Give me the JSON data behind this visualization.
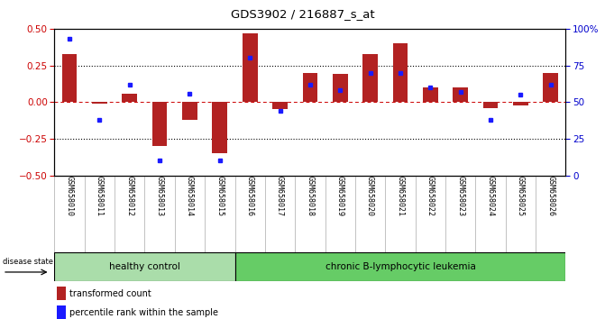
{
  "title": "GDS3902 / 216887_s_at",
  "samples": [
    "GSM658010",
    "GSM658011",
    "GSM658012",
    "GSM658013",
    "GSM658014",
    "GSM658015",
    "GSM658016",
    "GSM658017",
    "GSM658018",
    "GSM658019",
    "GSM658020",
    "GSM658021",
    "GSM658022",
    "GSM658023",
    "GSM658024",
    "GSM658025",
    "GSM658026"
  ],
  "red_values": [
    0.33,
    -0.01,
    0.06,
    -0.3,
    -0.12,
    -0.35,
    0.47,
    -0.05,
    0.2,
    0.19,
    0.33,
    0.4,
    0.1,
    0.1,
    -0.04,
    -0.02,
    0.2
  ],
  "blue_values": [
    93,
    38,
    62,
    10,
    56,
    10,
    80,
    44,
    62,
    58,
    70,
    70,
    60,
    57,
    38,
    55,
    62
  ],
  "healthy_count": 6,
  "group1_label": "healthy control",
  "group2_label": "chronic B-lymphocytic leukemia",
  "disease_state_label": "disease state",
  "legend_red": "transformed count",
  "legend_blue": "percentile rank within the sample",
  "bar_color": "#b22222",
  "dot_color": "#1a1aff",
  "bg_color": "#ffffff",
  "ylim": [
    -0.5,
    0.5
  ],
  "y2lim": [
    0,
    100
  ],
  "yticks": [
    -0.5,
    -0.25,
    0,
    0.25,
    0.5
  ],
  "y2ticks": [
    0,
    25,
    50,
    75,
    100
  ],
  "y2ticklabels": [
    "0",
    "25",
    "50",
    "75",
    "100%"
  ],
  "hline_positions": [
    -0.25,
    0.25
  ],
  "group1_color": "#aaddaa",
  "group2_color": "#66cc66"
}
